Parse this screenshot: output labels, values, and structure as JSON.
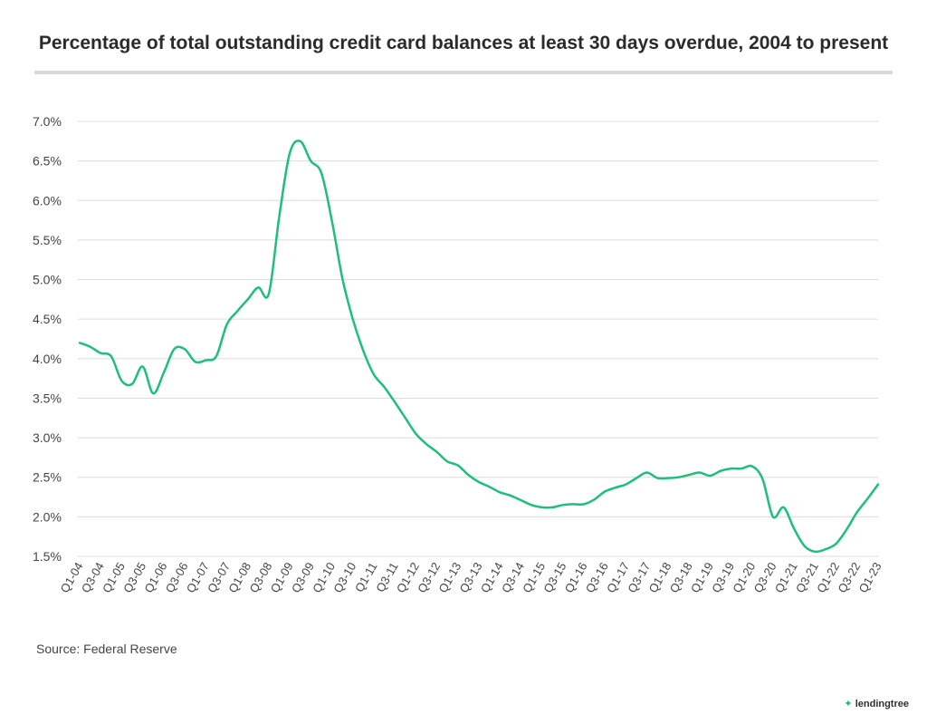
{
  "chart_data": {
    "type": "line",
    "title": "Percentage of total outstanding credit card balances at least 30 days overdue, 2004 to present",
    "xlabel": "",
    "ylabel": "",
    "ylim": [
      1.5,
      7.0
    ],
    "yticks": [
      "7.0%",
      "6.5%",
      "6.0%",
      "5.5%",
      "5.0%",
      "4.5%",
      "4.0%",
      "3.5%",
      "3.0%",
      "2.5%",
      "2.0%",
      "1.5%"
    ],
    "grid": true,
    "line_color": "#1fbf7a",
    "x": [
      "Q1-04",
      "Q2-04",
      "Q3-04",
      "Q4-04",
      "Q1-05",
      "Q2-05",
      "Q3-05",
      "Q4-05",
      "Q1-06",
      "Q2-06",
      "Q3-06",
      "Q4-06",
      "Q1-07",
      "Q2-07",
      "Q3-07",
      "Q4-07",
      "Q1-08",
      "Q2-08",
      "Q3-08",
      "Q4-08",
      "Q1-09",
      "Q2-09",
      "Q3-09",
      "Q4-09",
      "Q1-10",
      "Q2-10",
      "Q3-10",
      "Q4-10",
      "Q1-11",
      "Q2-11",
      "Q3-11",
      "Q4-11",
      "Q1-12",
      "Q2-12",
      "Q3-12",
      "Q4-12",
      "Q1-13",
      "Q2-13",
      "Q3-13",
      "Q4-13",
      "Q1-14",
      "Q2-14",
      "Q3-14",
      "Q4-14",
      "Q1-15",
      "Q2-15",
      "Q3-15",
      "Q4-15",
      "Q1-16",
      "Q2-16",
      "Q3-16",
      "Q4-16",
      "Q1-17",
      "Q2-17",
      "Q3-17",
      "Q4-17",
      "Q1-18",
      "Q2-18",
      "Q3-18",
      "Q4-18",
      "Q1-19",
      "Q2-19",
      "Q3-19",
      "Q4-19",
      "Q1-20",
      "Q2-20",
      "Q3-20",
      "Q4-20",
      "Q1-21",
      "Q2-21",
      "Q3-21",
      "Q4-21",
      "Q1-22",
      "Q2-22",
      "Q3-22",
      "Q4-22",
      "Q1-23"
    ],
    "x_tick_labels": [
      "Q1-04",
      "Q3-04",
      "Q1-05",
      "Q3-05",
      "Q1-06",
      "Q3-06",
      "Q1-07",
      "Q3-07",
      "Q1-08",
      "Q3-08",
      "Q1-09",
      "Q3-09",
      "Q1-10",
      "Q3-10",
      "Q1-11",
      "Q3-11",
      "Q1-12",
      "Q3-12",
      "Q1-13",
      "Q3-13",
      "Q1-14",
      "Q3-14",
      "Q1-15",
      "Q3-15",
      "Q1-16",
      "Q3-16",
      "Q1-17",
      "Q3-17",
      "Q1-18",
      "Q3-18",
      "Q1-19",
      "Q3-19",
      "Q1-20",
      "Q3-20",
      "Q1-21",
      "Q3-21",
      "Q1-22",
      "Q3-22",
      "Q1-23"
    ],
    "series": [
      {
        "values": [
          4.2,
          4.15,
          4.07,
          4.03,
          3.72,
          3.68,
          3.9,
          3.56,
          3.82,
          4.12,
          4.12,
          3.96,
          3.98,
          4.03,
          4.43,
          4.6,
          4.75,
          4.9,
          4.82,
          5.8,
          6.6,
          6.75,
          6.5,
          6.35,
          5.75,
          5.02,
          4.5,
          4.1,
          3.8,
          3.64,
          3.45,
          3.25,
          3.05,
          2.92,
          2.82,
          2.7,
          2.65,
          2.53,
          2.44,
          2.38,
          2.31,
          2.27,
          2.21,
          2.15,
          2.12,
          2.12,
          2.15,
          2.16,
          2.16,
          2.22,
          2.32,
          2.37,
          2.41,
          2.49,
          2.56,
          2.49,
          2.49,
          2.5,
          2.53,
          2.56,
          2.52,
          2.58,
          2.61,
          2.61,
          2.64,
          2.48,
          2.0,
          2.12,
          1.85,
          1.63,
          1.56,
          1.59,
          1.66,
          1.84,
          2.06,
          2.23,
          2.41
        ]
      }
    ]
  },
  "source": "Source: Federal Reserve",
  "brand": {
    "text": "lendingtree"
  }
}
